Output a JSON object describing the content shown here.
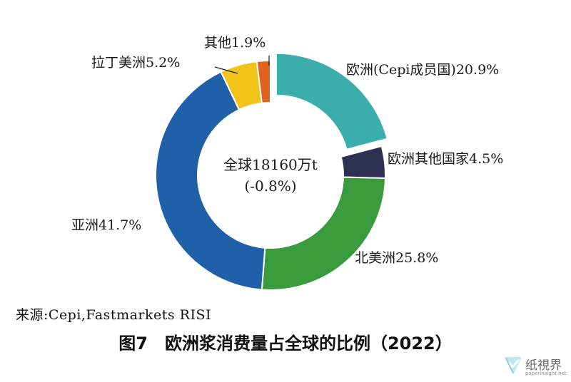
{
  "chart_data": {
    "type": "pie",
    "subtype": "donut",
    "title": "图7　欧洲浆消费量占全球的比例（2022）",
    "center_label": "全球18160万t",
    "center_sublabel": "(-0.8%)",
    "slices": [
      {
        "name": "欧洲(Cepi成员国)",
        "value": 20.9,
        "label": "欧洲(Cepi成员国)20.9%",
        "color": "#3aadad",
        "exploded": true
      },
      {
        "name": "欧洲其他国家",
        "value": 4.5,
        "label": "欧洲其他国家4.5%",
        "color": "#2e3050",
        "exploded": false
      },
      {
        "name": "北美洲",
        "value": 25.8,
        "label": "北美洲25.8%",
        "color": "#3a9b3c",
        "exploded": false
      },
      {
        "name": "亚洲",
        "value": 41.7,
        "label": "亚洲41.7%",
        "color": "#2060a8",
        "exploded": false
      },
      {
        "name": "拉丁美洲",
        "value": 5.2,
        "label": "拉丁美洲5.2%",
        "color": "#f2c319",
        "exploded": false
      },
      {
        "name": "其他",
        "value": 1.9,
        "label": "其他1.9%",
        "color": "#e0641e",
        "exploded": false
      }
    ]
  },
  "source": "来源:Cepi,Fastmarkets RISI",
  "watermark": {
    "cn": "纸視界",
    "en": "paperinsight.net"
  }
}
